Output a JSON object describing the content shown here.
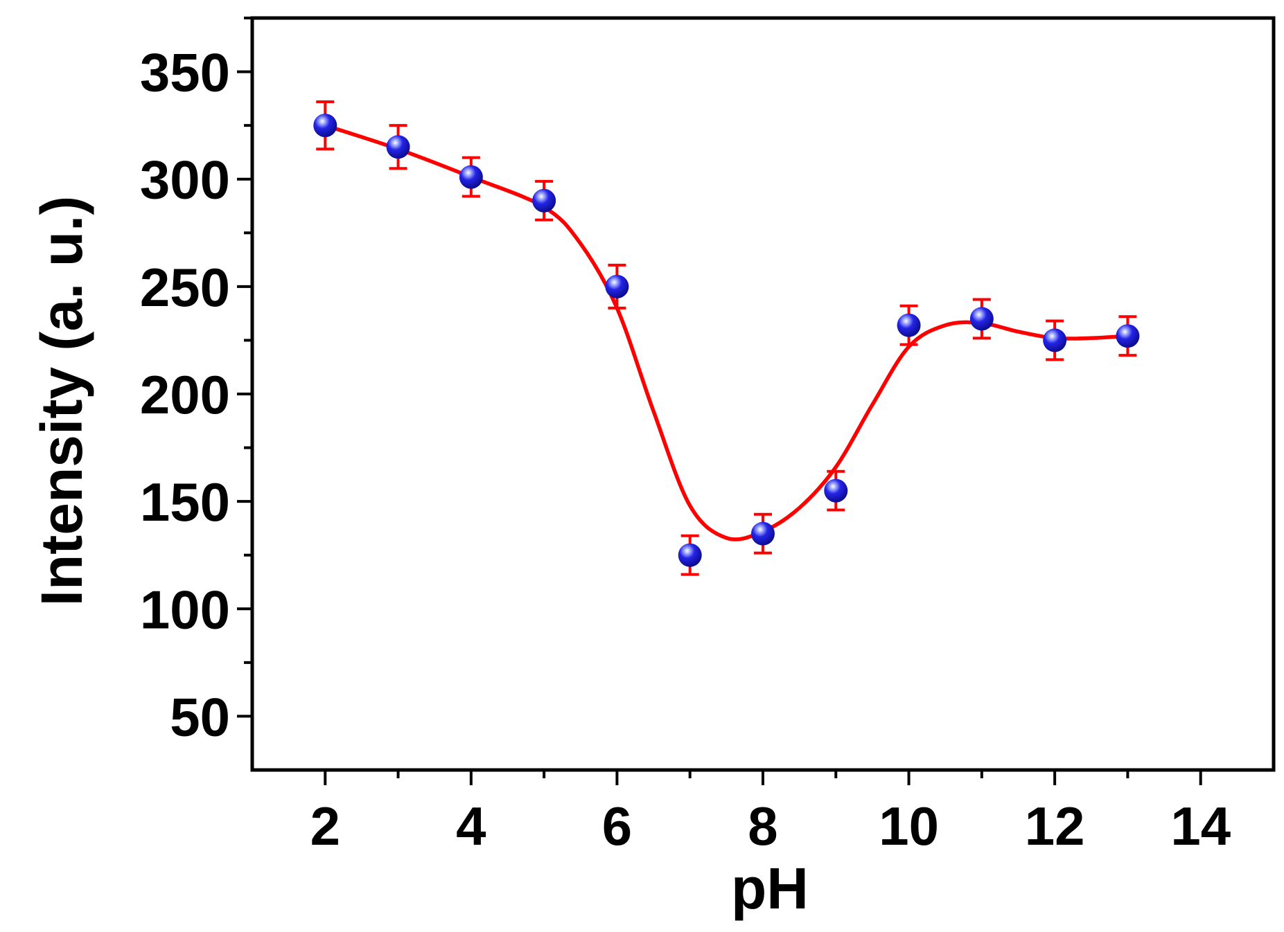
{
  "chart_data": {
    "type": "scatter",
    "title": "",
    "xlabel": "pH",
    "ylabel": "Intensity (a. u.)",
    "xlim": [
      1,
      15
    ],
    "ylim": [
      25,
      375
    ],
    "x_ticks": [
      2,
      4,
      6,
      8,
      10,
      12,
      14
    ],
    "x_tick_labels": [
      "2",
      "4",
      "6",
      "8",
      "10",
      "12",
      "14"
    ],
    "y_ticks": [
      50,
      100,
      150,
      200,
      250,
      300,
      350
    ],
    "y_tick_labels": [
      "50",
      "100",
      "150",
      "200",
      "250",
      "300",
      "350"
    ],
    "grid": false,
    "legend": "none",
    "series": [
      {
        "x": [
          2,
          3,
          4,
          5,
          6,
          7,
          8,
          9,
          10,
          11,
          12,
          13
        ],
        "y": [
          325,
          315,
          301,
          290,
          250,
          125,
          135,
          155,
          232,
          235,
          225,
          227
        ],
        "error": [
          11,
          10,
          9,
          9,
          10,
          9,
          9,
          9,
          9,
          9,
          9,
          9
        ],
        "marker_color": "#1a1adb",
        "error_color": "#ff0000"
      }
    ],
    "fit_curve": {
      "color": "#ff0000",
      "x": [
        2,
        3,
        4,
        5,
        5.5,
        6,
        6.5,
        7,
        7.5,
        8,
        8.5,
        9,
        9.5,
        10,
        10.5,
        11,
        11.5,
        12,
        12.5,
        13
      ],
      "y": [
        325,
        314,
        301,
        287,
        270,
        240,
        192,
        148,
        133,
        136,
        147,
        166,
        195,
        222,
        232,
        233,
        229,
        226,
        226,
        227
      ]
    }
  }
}
